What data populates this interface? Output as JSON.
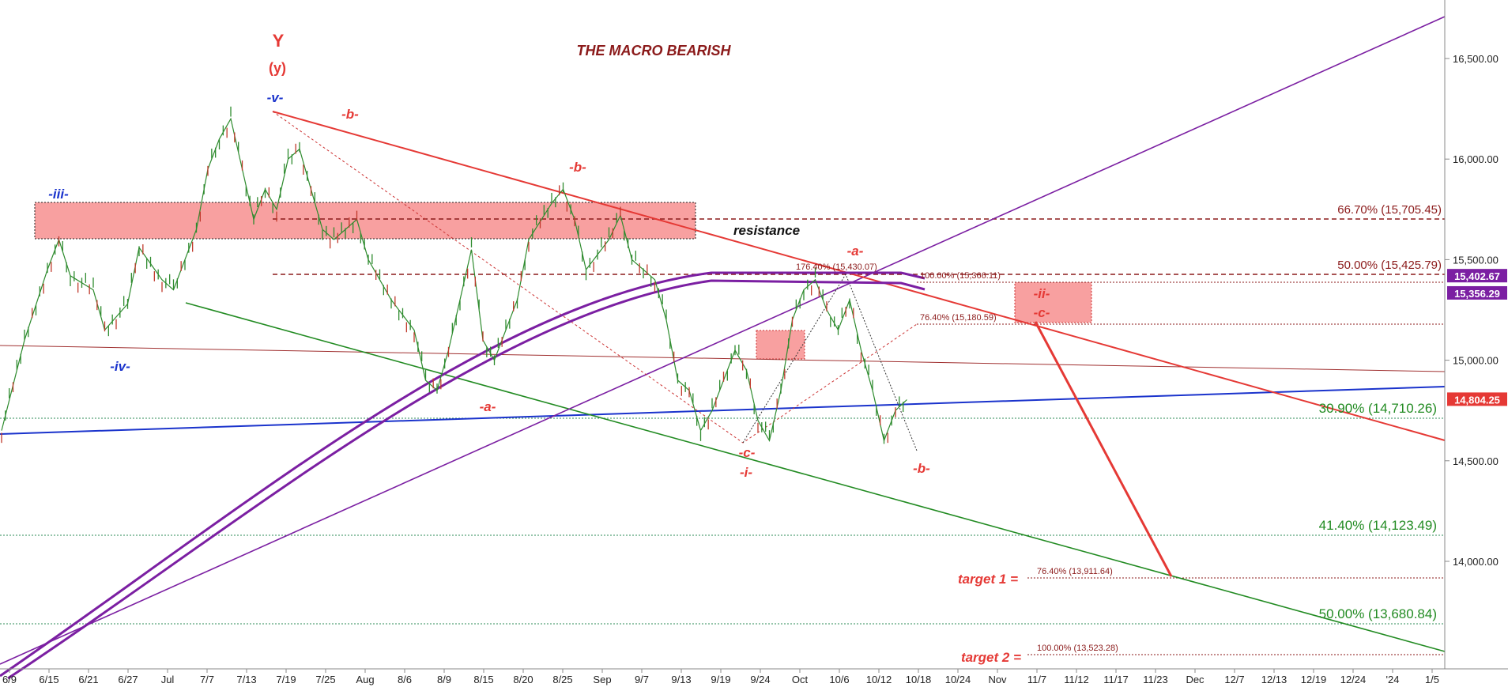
{
  "chart_data": {
    "type": "line",
    "title": "THE MACRO BEARISH",
    "x_ticks": [
      "6/9",
      "6/15",
      "6/21",
      "6/27",
      "Jul",
      "7/7",
      "7/13",
      "7/19",
      "7/25",
      "Aug",
      "8/6",
      "8/9",
      "8/15",
      "8/20",
      "8/25",
      "Sep",
      "9/7",
      "9/13",
      "9/19",
      "9/24",
      "Oct",
      "10/6",
      "10/12",
      "10/18",
      "10/24",
      "Nov",
      "11/7",
      "11/12",
      "11/17",
      "11/23",
      "Dec",
      "12/7",
      "12/13",
      "12/19",
      "12/24",
      "'24",
      "1/5"
    ],
    "y_ticks": [
      "16,500.00",
      "16,000.00",
      "15,500.00",
      "15,000.00",
      "14,500.00",
      "14,000.00"
    ],
    "ylim": [
      13580,
      16850
    ],
    "y_scale": "linear",
    "grid": false,
    "price_path": [
      [
        0,
        14650
      ],
      [
        2,
        15100
      ],
      [
        4,
        15450
      ],
      [
        5,
        15600
      ],
      [
        6,
        15420
      ],
      [
        8,
        15350
      ],
      [
        9,
        15150
      ],
      [
        11,
        15280
      ],
      [
        12,
        15560
      ],
      [
        14,
        15400
      ],
      [
        15,
        15350
      ],
      [
        17,
        15650
      ],
      [
        18,
        15950
      ],
      [
        19,
        16100
      ],
      [
        20,
        16200
      ],
      [
        21,
        15950
      ],
      [
        22,
        15700
      ],
      [
        23,
        15850
      ],
      [
        24,
        15750
      ],
      [
        25,
        16000
      ],
      [
        26,
        16050
      ],
      [
        27,
        15850
      ],
      [
        28,
        15650
      ],
      [
        29,
        15600
      ],
      [
        31,
        15700
      ],
      [
        32,
        15500
      ],
      [
        34,
        15300
      ],
      [
        36,
        15150
      ],
      [
        37,
        14900
      ],
      [
        38,
        14850
      ],
      [
        39,
        15050
      ],
      [
        40,
        15300
      ],
      [
        41,
        15550
      ],
      [
        42,
        15100
      ],
      [
        43,
        15000
      ],
      [
        45,
        15300
      ],
      [
        46,
        15600
      ],
      [
        48,
        15780
      ],
      [
        49,
        15850
      ],
      [
        50,
        15700
      ],
      [
        51,
        15450
      ],
      [
        53,
        15600
      ],
      [
        54,
        15720
      ],
      [
        55,
        15500
      ],
      [
        56,
        15450
      ],
      [
        57,
        15400
      ],
      [
        58,
        15200
      ],
      [
        59,
        14900
      ],
      [
        60,
        14850
      ],
      [
        61,
        14650
      ],
      [
        62,
        14750
      ],
      [
        63,
        14900
      ],
      [
        64,
        15050
      ],
      [
        65,
        14950
      ],
      [
        66,
        14700
      ],
      [
        67,
        14600
      ],
      [
        68,
        14850
      ],
      [
        69,
        15200
      ],
      [
        70,
        15350
      ],
      [
        71,
        15400
      ],
      [
        72,
        15250
      ],
      [
        73,
        15150
      ],
      [
        74,
        15300
      ],
      [
        75,
        15050
      ],
      [
        76,
        14850
      ],
      [
        77,
        14600
      ],
      [
        78,
        14750
      ],
      [
        79,
        14804
      ]
    ],
    "price_annotations": [
      {
        "label": "15,402.67",
        "value": 15402.67,
        "color": "#7b1fa2"
      },
      {
        "label": "15,356.29",
        "value": 15356.29,
        "color": "#7b1fa2"
      },
      {
        "label": "14,804.25",
        "value": 14804.25,
        "color": "#e53935"
      }
    ],
    "fib_levels": [
      {
        "label": "66.70% (15,705.45)",
        "value": 15705.45,
        "color": "#8b1a1a"
      },
      {
        "label": "50.00% (15,425.79)",
        "value": 15425.79,
        "color": "#8b1a1a"
      },
      {
        "label": "176.40% (15,430.07)",
        "value": 15430.07,
        "color": "#8b1a1a"
      },
      {
        "label": "100.00% (15,366.11)",
        "value": 15366.11,
        "color": "#8b1a1a"
      },
      {
        "label": "76.40% (15,180.59)",
        "value": 15180.59,
        "color": "#8b1a1a"
      },
      {
        "label": "30.90% (14,710.26)",
        "value": 14710.26,
        "color": "#2e7d32"
      },
      {
        "label": "41.40% (14,123.49)",
        "value": 14123.49,
        "color": "#2e7d32"
      },
      {
        "label": "76.40% (13,911.64)",
        "value": 13911.64,
        "color": "#8b1a1a"
      },
      {
        "label": "50.00% (13,680.84)",
        "value": 13680.84,
        "color": "#2e7d32"
      },
      {
        "label": "100.00% (13,523.28)",
        "value": 13523.28,
        "color": "#8b1a1a"
      }
    ],
    "annotations": {
      "Y": "Y",
      "y_paren": "(y)",
      "v": "-v-",
      "iii": "-iii-",
      "iv": "-iv-",
      "b1": "-b-",
      "b2": "-b-",
      "b3": "-b-",
      "a1": "-a-",
      "a2": "-a-",
      "c1": "-c-",
      "i": "-i-",
      "ii": "-ii-",
      "c2": "-c-",
      "resistance": "resistance",
      "target1": "target 1 =",
      "target2": "target 2 ="
    },
    "colors": {
      "red": "#e53935",
      "purple": "#7b1fa2",
      "blue": "#1a33cc",
      "green": "#228b22",
      "dark_red": "#8b1a1a",
      "zone": "#f8a0a0"
    }
  }
}
